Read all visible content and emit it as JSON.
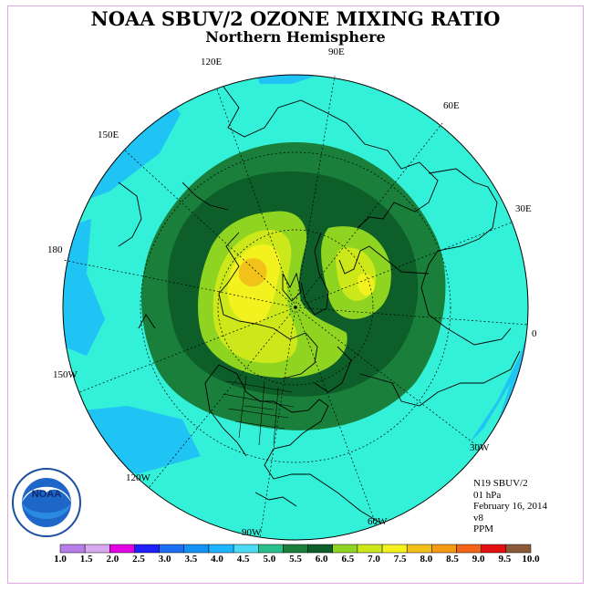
{
  "title": "NOAA SBUV/2 OZONE MIXING RATIO",
  "subtitle": "Northern Hemisphere",
  "longitude_labels": [
    "90E",
    "60E",
    "30E",
    "0",
    "30W",
    "60W",
    "90W",
    "120W",
    "150W",
    "180",
    "150E",
    "120E"
  ],
  "info": {
    "instrument": "N19 SBUV/2",
    "level": "01 hPa",
    "date": "February 16, 2014",
    "version": "v8",
    "units": "PPM"
  },
  "colorbar": {
    "labels": [
      "1.0",
      "1.5",
      "2.0",
      "2.5",
      "3.0",
      "3.5",
      "4.0",
      "4.5",
      "5.0",
      "5.5",
      "6.0",
      "6.5",
      "7.0",
      "7.5",
      "8.0",
      "8.5",
      "9.0",
      "9.5",
      "10.0"
    ],
    "colors": [
      "#b77ee9",
      "#d8aaf0",
      "#e400e4",
      "#2020ff",
      "#1c6ff2",
      "#1593f5",
      "#1fb4ff",
      "#4bdcf5",
      "#2ac08e",
      "#1a7f3a",
      "#0e5e2a",
      "#8fd421",
      "#cce81a",
      "#f3f21e",
      "#f2c21a",
      "#f59b12",
      "#f26418",
      "#e21010",
      "#8b5a3a"
    ]
  },
  "legend_logo_text": "NOAA",
  "map_colors": {
    "ocean_background": "#33f0d8",
    "blue_region": "#1fc3f4",
    "dark_green": "#1a7f3a",
    "darker_green": "#0e5e2a",
    "light_green": "#8fd421",
    "yellow_green": "#cce81a",
    "yellow": "#f3f21e",
    "orange": "#f2c21a"
  }
}
